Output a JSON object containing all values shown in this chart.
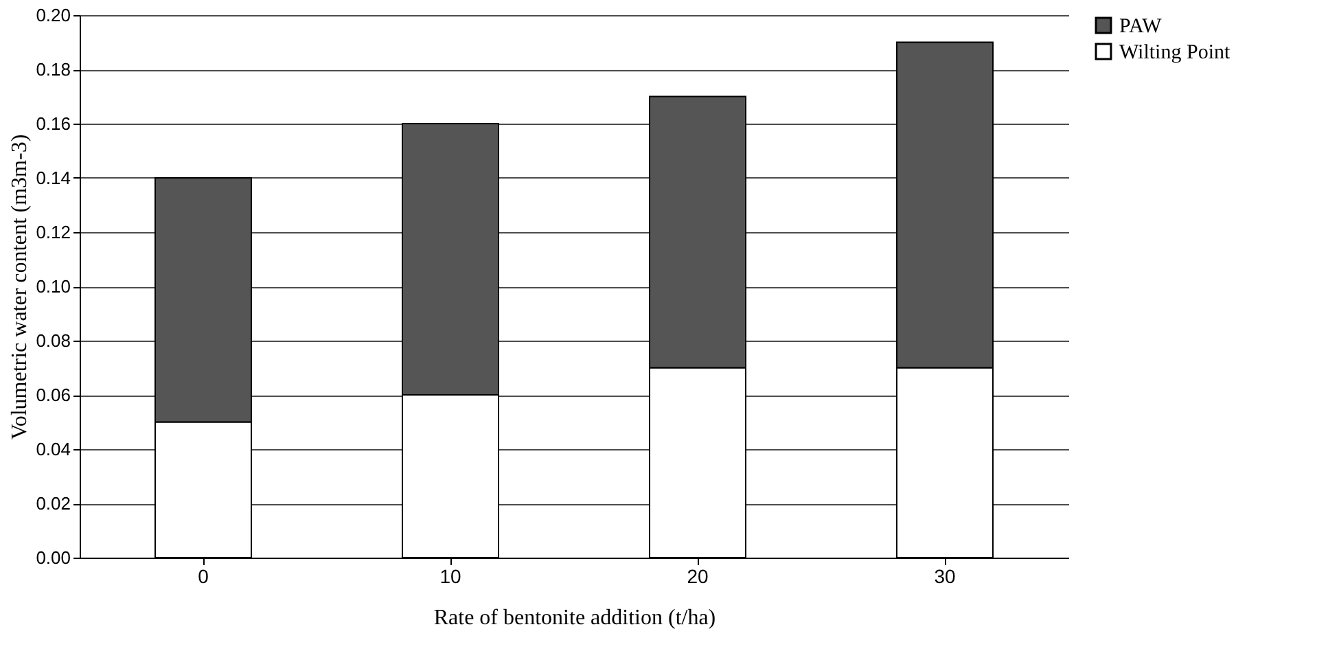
{
  "chart_data": {
    "type": "bar",
    "stacked": true,
    "xlabel": "Rate of bentonite addition (t/ha)",
    "ylabel": "Volumetric water content (m3m-3)",
    "categories": [
      "0",
      "10",
      "20",
      "30"
    ],
    "series": [
      {
        "name": "Wilting Point",
        "color": "#ffffff",
        "values": [
          0.05,
          0.06,
          0.07,
          0.07
        ]
      },
      {
        "name": "PAW",
        "color": "#555555",
        "values": [
          0.09,
          0.1,
          0.1,
          0.12
        ]
      }
    ],
    "ylim": [
      0,
      0.2
    ],
    "yticks": [
      {
        "value": 0,
        "label": "0.00"
      },
      {
        "value": 0.02,
        "label": "0.02"
      },
      {
        "value": 0.04,
        "label": "0.04"
      },
      {
        "value": 0.06,
        "label": "0.06"
      },
      {
        "value": 0.08,
        "label": "0.08"
      },
      {
        "value": 0.1,
        "label": "0.10"
      },
      {
        "value": 0.12,
        "label": "0.12"
      },
      {
        "value": 0.14,
        "label": "0.14"
      },
      {
        "value": 0.16,
        "label": "0.16"
      },
      {
        "value": 0.18,
        "label": "0.18"
      },
      {
        "value": 0.2,
        "label": "0.20"
      }
    ],
    "grid": "y",
    "legend": "right"
  }
}
